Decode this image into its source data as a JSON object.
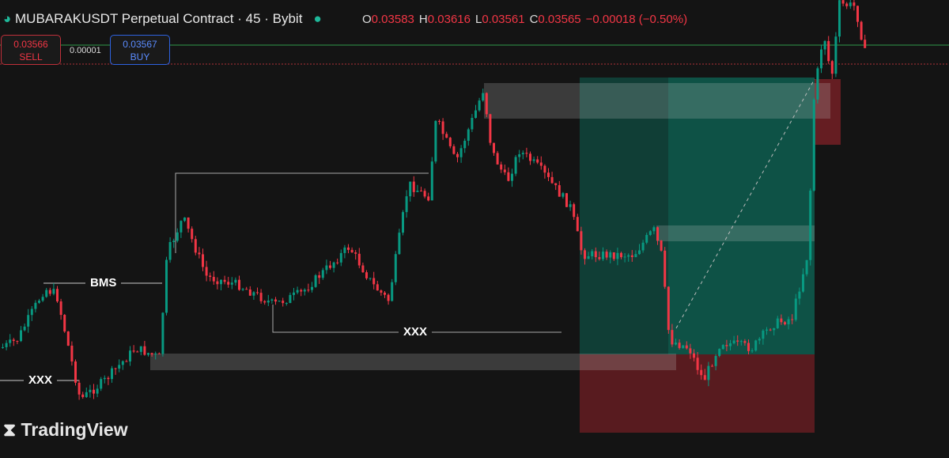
{
  "header": {
    "title": "MUBARAKUSDT Perpetual Contract · 45 · Bybit",
    "ohlc": [
      {
        "label": "O",
        "value": "0.03583"
      },
      {
        "label": "H",
        "value": "0.03616"
      },
      {
        "label": "L",
        "value": "0.03561"
      },
      {
        "label": "C",
        "value": "0.03565"
      }
    ],
    "change": "−0.00018 (−0.50%)"
  },
  "order_panel": {
    "sell": {
      "price": "0.03566",
      "label": "SELL"
    },
    "spread": "0.00001",
    "buy": {
      "price": "0.03567",
      "label": "BUY"
    }
  },
  "annotations": [
    "BMS",
    "XXX",
    "XXX"
  ],
  "watermark": "TradingView"
}
